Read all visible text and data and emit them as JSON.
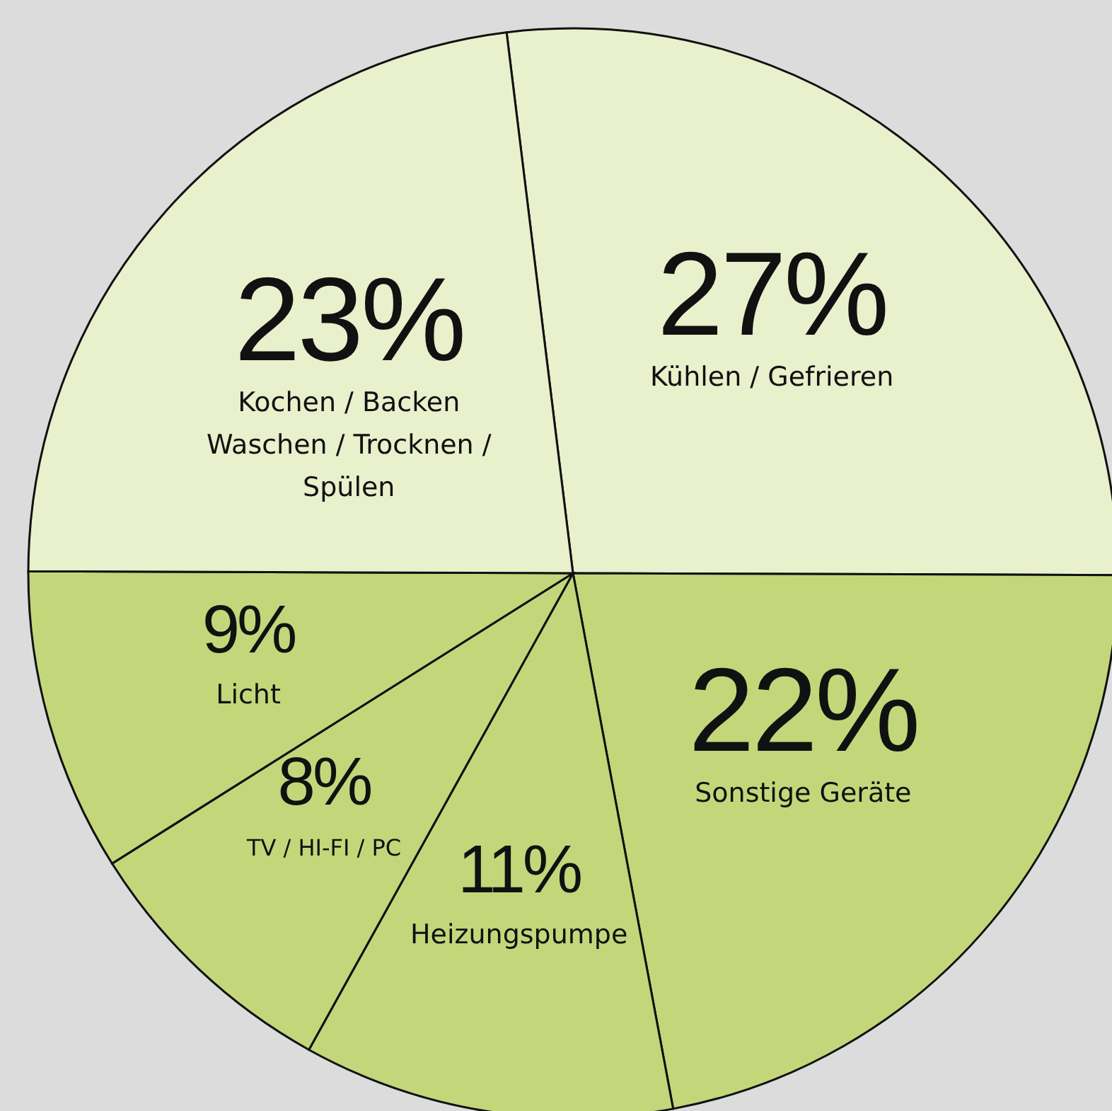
{
  "chart_data": {
    "type": "pie",
    "categories": [
      "Kühlen / Gefrieren",
      "Sonstige Geräte",
      "Heizungspumpe",
      "TV / HI-FI / PC",
      "Licht",
      "Kochen / Backen\nWaschen / Trocknen /\nSpülen"
    ],
    "values": [
      27,
      22,
      11,
      8,
      9,
      23
    ],
    "colors": [
      "#e9f0cc",
      "#c3d77a",
      "#c3d77a",
      "#c3d77a",
      "#c3d77a",
      "#e9f0cc"
    ],
    "value_labels": [
      "27%",
      "22%",
      "11%",
      "8%",
      "9%",
      "23%"
    ],
    "legend": false
  }
}
